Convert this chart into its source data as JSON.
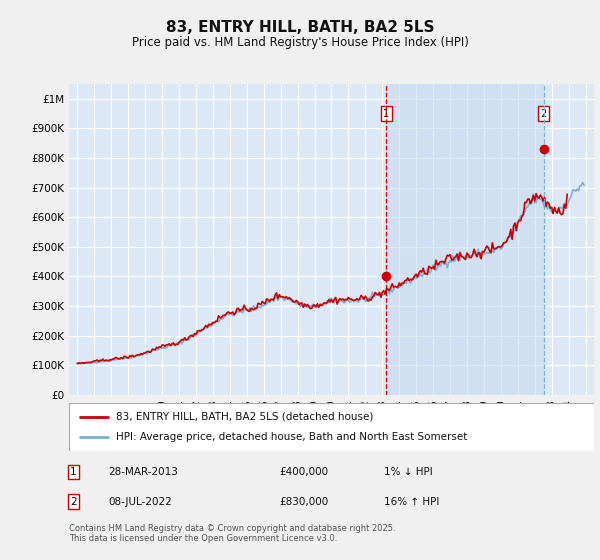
{
  "title": "83, ENTRY HILL, BATH, BA2 5LS",
  "subtitle": "Price paid vs. HM Land Registry's House Price Index (HPI)",
  "ylim": [
    0,
    1050000
  ],
  "yticks": [
    0,
    100000,
    200000,
    300000,
    400000,
    500000,
    600000,
    700000,
    800000,
    900000,
    1000000
  ],
  "ytick_labels": [
    "£0",
    "£100K",
    "£200K",
    "£300K",
    "£400K",
    "£500K",
    "£600K",
    "£700K",
    "£800K",
    "£900K",
    "£1M"
  ],
  "xlim_start": 1994.5,
  "xlim_end": 2025.5,
  "fig_bg_color": "#f0f0f0",
  "plot_bg_color": "#dce8f5",
  "grid_color": "#ffffff",
  "transaction1_x": 2013.24,
  "transaction1_y": 400000,
  "transaction2_x": 2022.52,
  "transaction2_y": 830000,
  "legend_line1": "83, ENTRY HILL, BATH, BA2 5LS (detached house)",
  "legend_line2": "HPI: Average price, detached house, Bath and North East Somerset",
  "note1_label": "1",
  "note1_date": "28-MAR-2013",
  "note1_price": "£400,000",
  "note1_hpi": "1% ↓ HPI",
  "note2_label": "2",
  "note2_date": "08-JUL-2022",
  "note2_price": "£830,000",
  "note2_hpi": "16% ↑ HPI",
  "footer": "Contains HM Land Registry data © Crown copyright and database right 2025.\nThis data is licensed under the Open Government Licence v3.0.",
  "hpi_color": "#7ab0d4",
  "price_color": "#cc0000",
  "shade_color": "#c8dcf0",
  "vline1_color": "#cc0000",
  "vline2_color": "#7ab0d4"
}
